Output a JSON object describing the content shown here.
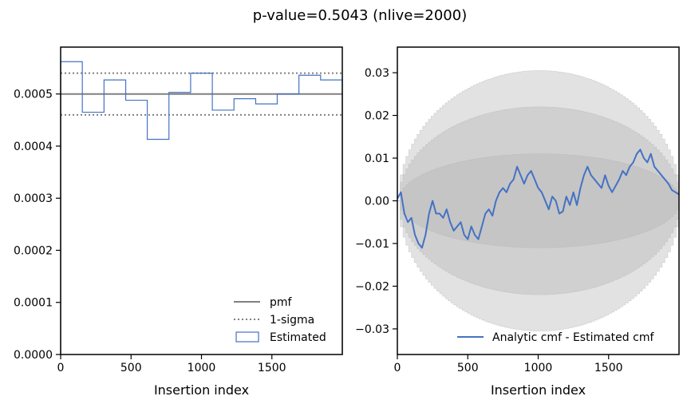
{
  "suptitle": "p-value=0.5043 (nlive=2000)",
  "colors": {
    "estimated": "#4472c4",
    "pmf": "#808080",
    "sigma": "#808080",
    "band": "#b4b4b4"
  },
  "chart_data": [
    {
      "type": "step",
      "xlabel": "Insertion index",
      "ylabel": "",
      "xlim": [
        0,
        2000
      ],
      "ylim": [
        0,
        0.00059
      ],
      "xticks": [
        0,
        500,
        1000,
        1500
      ],
      "xtick_labels": [
        "0",
        "500",
        "1000",
        "1500"
      ],
      "yticks": [
        0,
        0.0001,
        0.0002,
        0.0003,
        0.0004,
        0.0005
      ],
      "ytick_labels": [
        "0.0000",
        "0.0001",
        "0.0002",
        "0.0003",
        "0.0004",
        "0.0005"
      ],
      "pmf": 0.0005,
      "sigma": [
        0.00046,
        0.00054
      ],
      "bin_edges": [
        0,
        154,
        308,
        462,
        615,
        769,
        923,
        1077,
        1231,
        1385,
        1538,
        1692,
        1846,
        2000
      ],
      "estimated": [
        0.000562,
        0.000465,
        0.000527,
        0.000488,
        0.000413,
        0.000503,
        0.00054,
        0.000469,
        0.000491,
        0.000481,
        0.0005,
        0.000536,
        0.000527
      ],
      "legend": {
        "position": "lower right",
        "entries": [
          "pmf",
          "1-sigma",
          "Estimated"
        ]
      }
    },
    {
      "type": "line",
      "xlabel": "Insertion index",
      "ylabel": "",
      "xlim": [
        0,
        2000
      ],
      "ylim": [
        -0.036,
        0.036
      ],
      "xticks": [
        0,
        500,
        1000,
        1500
      ],
      "xtick_labels": [
        "0",
        "500",
        "1000",
        "1500"
      ],
      "yticks": [
        -0.03,
        -0.02,
        -0.01,
        0.0,
        0.01,
        0.02,
        0.03
      ],
      "ytick_labels": [
        "−0.03",
        "−0.02",
        "−0.01",
        "0.00",
        "0.01",
        "0.02",
        "0.03"
      ],
      "bands_sigma_at_center": [
        0.011,
        0.022,
        0.0305
      ],
      "series": [
        {
          "name": "Analytic cmf - Estimated cmf",
          "x": [
            0,
            25,
            50,
            75,
            100,
            125,
            150,
            175,
            200,
            225,
            250,
            275,
            300,
            325,
            350,
            375,
            400,
            425,
            450,
            475,
            500,
            525,
            550,
            575,
            600,
            625,
            650,
            675,
            700,
            725,
            750,
            775,
            800,
            825,
            850,
            875,
            900,
            925,
            950,
            975,
            1000,
            1025,
            1050,
            1075,
            1100,
            1125,
            1150,
            1175,
            1200,
            1225,
            1250,
            1275,
            1300,
            1325,
            1350,
            1375,
            1400,
            1425,
            1450,
            1475,
            1500,
            1525,
            1550,
            1575,
            1600,
            1625,
            1650,
            1675,
            1700,
            1725,
            1750,
            1775,
            1800,
            1825,
            1850,
            1875,
            1900,
            1925,
            1950,
            1975,
            2000
          ],
          "y": [
            0.0005,
            0.002,
            -0.003,
            -0.005,
            -0.004,
            -0.008,
            -0.01,
            -0.011,
            -0.008,
            -0.003,
            0.0,
            -0.003,
            -0.003,
            -0.004,
            -0.002,
            -0.005,
            -0.007,
            -0.006,
            -0.005,
            -0.008,
            -0.009,
            -0.006,
            -0.008,
            -0.009,
            -0.006,
            -0.003,
            -0.002,
            -0.0035,
            0.0,
            0.002,
            0.003,
            0.002,
            0.004,
            0.005,
            0.008,
            0.006,
            0.004,
            0.006,
            0.007,
            0.005,
            0.003,
            0.002,
            0.0,
            -0.002,
            0.001,
            0.0,
            -0.003,
            -0.0025,
            0.001,
            -0.001,
            0.002,
            -0.001,
            0.003,
            0.006,
            0.008,
            0.006,
            0.005,
            0.004,
            0.003,
            0.006,
            0.0035,
            0.002,
            0.0035,
            0.005,
            0.007,
            0.006,
            0.008,
            0.009,
            0.011,
            0.012,
            0.01,
            0.009,
            0.011,
            0.008,
            0.007,
            0.006,
            0.005,
            0.004,
            0.0025,
            0.002,
            0.0015
          ]
        }
      ],
      "legend": {
        "position": "lower right",
        "entries": [
          "Analytic cmf - Estimated cmf"
        ]
      }
    }
  ]
}
